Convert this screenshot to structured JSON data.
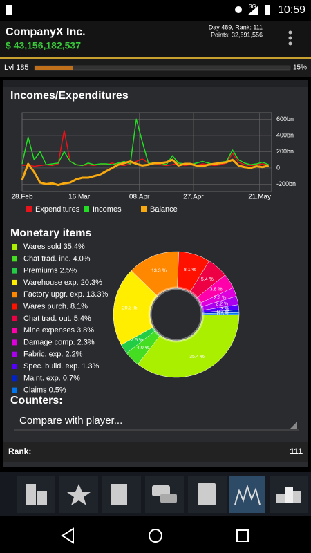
{
  "status_bar": {
    "network": "3G",
    "time": "10:59"
  },
  "header": {
    "company": "CompanyX Inc.",
    "money": "$ 43,156,182,537",
    "day_rank": "Day 489, Rank: 111",
    "points": "Points: 32,691,556"
  },
  "level": {
    "label": "Lvl 185",
    "progress": 15,
    "progress_label": "15%"
  },
  "chart_data": [
    {
      "type": "line",
      "title": "Incomes/Expenditures",
      "x": [
        0,
        2,
        4,
        6,
        8,
        10,
        12,
        14,
        16,
        18,
        20,
        22,
        24,
        26,
        28,
        30,
        32,
        34,
        36,
        38,
        40,
        42,
        44,
        46,
        48,
        50,
        52,
        54,
        56,
        58,
        60,
        62,
        64,
        66,
        68,
        70,
        72,
        74,
        76,
        78,
        80,
        82
      ],
      "xlim": [
        0,
        83
      ],
      "xticks": [
        {
          "value": 0,
          "label": "28.Feb"
        },
        {
          "value": 19,
          "label": "16.Mar"
        },
        {
          "value": 39,
          "label": "08.Apr"
        },
        {
          "value": 57,
          "label": "27.Apr"
        },
        {
          "value": 79,
          "label": "21.May"
        }
      ],
      "ylim": [
        -290,
        680
      ],
      "yticks": [
        {
          "value": 600,
          "label": "600bn"
        },
        {
          "value": 400,
          "label": "400bn"
        },
        {
          "value": 200,
          "label": "200bn"
        },
        0,
        {
          "value": -200,
          "label": "-200bn"
        }
      ],
      "grid": true,
      "series": [
        {
          "name": "Expenditures",
          "color": "#e8141b",
          "values": [
            30,
            40,
            20,
            30,
            40,
            30,
            50,
            460,
            80,
            40,
            30,
            40,
            30,
            50,
            40,
            60,
            40,
            30,
            50,
            80,
            110,
            60,
            50,
            40,
            30,
            40,
            60,
            30,
            40,
            30,
            50,
            40,
            30,
            40,
            60,
            180,
            70,
            40,
            30,
            40,
            50,
            30
          ]
        },
        {
          "name": "Incomes",
          "color": "#22dd22",
          "values": [
            50,
            380,
            100,
            200,
            40,
            50,
            60,
            200,
            80,
            40,
            30,
            60,
            40,
            50,
            50,
            40,
            60,
            80,
            50,
            600,
            320,
            60,
            50,
            60,
            40,
            150,
            60,
            50,
            40,
            60,
            80,
            60,
            40,
            70,
            80,
            220,
            100,
            60,
            40,
            50,
            70,
            40
          ]
        },
        {
          "name": "Balance",
          "color": "#f7a90f",
          "values": [
            -150,
            50,
            -50,
            -180,
            -200,
            -190,
            -210,
            -190,
            -180,
            -140,
            -120,
            -120,
            -100,
            -80,
            -40,
            0,
            40,
            60,
            80,
            50,
            30,
            40,
            60,
            60,
            70,
            100,
            30,
            50,
            50,
            30,
            20,
            40,
            50,
            60,
            70,
            100,
            30,
            10,
            0,
            20,
            10,
            30
          ]
        }
      ]
    },
    {
      "type": "pie",
      "title": "Monetary items",
      "categories": [
        "Wares sold",
        "Chat trad. inc.",
        "Premiums",
        "Warehouse exp.",
        "Factory upgr. exp.",
        "Wares purch.",
        "Chat trad. out.",
        "Mine expenses",
        "Damage comp.",
        "Fabric. exp.",
        "Spec. build. exp.",
        "Maint. exp.",
        "Claims"
      ],
      "values": [
        35.4,
        4.0,
        2.5,
        20.3,
        13.3,
        8.1,
        5.4,
        3.8,
        2.3,
        2.2,
        1.3,
        0.7,
        0.5
      ],
      "value_labels": [
        "35.4%",
        "4.0%",
        "2.5%",
        "20.3%",
        "13.3%",
        "8.1%",
        "5.4%",
        "3.8%",
        "2.3%",
        "2.2%",
        "1.3%",
        "0.7%",
        "0.5%"
      ],
      "slice_labels": [
        "35.4 %",
        "4.0 %",
        "2.5 %",
        "20.3 %",
        "13.3 %",
        "8.1 %",
        "5.4 %",
        "3.8 %",
        "2.3 %",
        "2.2 %",
        "1.3 %",
        "0.7 %",
        "0.5 %"
      ],
      "colors": [
        "#aaee00",
        "#44dd22",
        "#22cc44",
        "#ffee00",
        "#ff8800",
        "#ff1100",
        "#ee0044",
        "#ff00aa",
        "#dd00dd",
        "#aa00ee",
        "#5500ff",
        "#0022cc",
        "#0077ee"
      ]
    }
  ],
  "counters": {
    "title": "Counters:",
    "dropdown": "Compare with player...",
    "rank_label": "Rank:",
    "rank_value": "111"
  }
}
